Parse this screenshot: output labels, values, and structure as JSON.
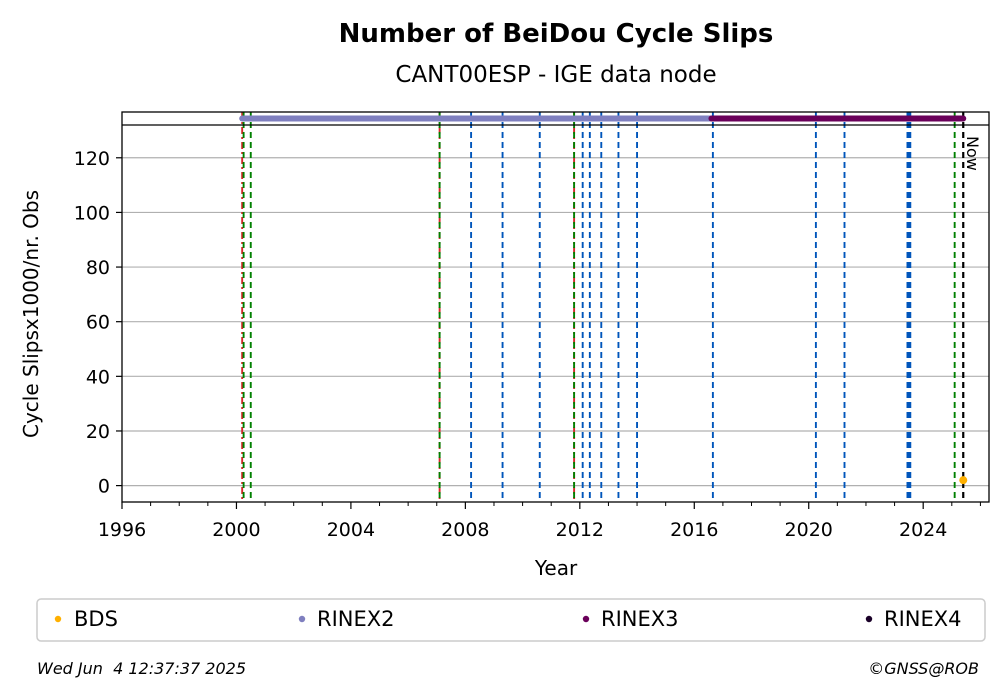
{
  "chart_data": {
    "type": "scatter",
    "title": "Number of BeiDou Cycle Slips",
    "subtitle": "CANT00ESP - IGE data node",
    "xlabel": "Year",
    "ylabel": "Cycle Slipsx1000/nr. Obs",
    "xlim": [
      1996,
      2026.3
    ],
    "ylim": [
      -6,
      132
    ],
    "x_ticks": [
      1996,
      2000,
      2004,
      2008,
      2012,
      2016,
      2020,
      2024
    ],
    "y_ticks": [
      0,
      20,
      40,
      60,
      80,
      100,
      120
    ],
    "grid": "horizontal",
    "legend_position": "bottom",
    "series": [
      {
        "name": "BDS",
        "color": "#ffb000",
        "points": [
          {
            "x": 2025.4,
            "y": 2
          }
        ]
      },
      {
        "name": "RINEX2",
        "color": "#7f7fbf",
        "x_start": 2000.2,
        "x_end": 2016.6
      },
      {
        "name": "RINEX3",
        "color": "#6a005a",
        "x_start": 2016.6,
        "x_end": 2025.4
      },
      {
        "name": "RINEX4",
        "color": "#1a0028",
        "x_start": null,
        "x_end": null
      }
    ],
    "event_lines": [
      {
        "x": 2000.2,
        "color": "#d62728",
        "style": "dashdot"
      },
      {
        "x": 2000.25,
        "color": "#008000",
        "style": "dashed"
      },
      {
        "x": 2000.5,
        "color": "#008000",
        "style": "dashed"
      },
      {
        "x": 2007.1,
        "color": "#d62728",
        "style": "dashdot"
      },
      {
        "x": 2007.1,
        "color": "#008000",
        "style": "dashed"
      },
      {
        "x": 2008.2,
        "color": "#0055bb",
        "style": "dashed"
      },
      {
        "x": 2009.3,
        "color": "#0055bb",
        "style": "dashed"
      },
      {
        "x": 2010.6,
        "color": "#0055bb",
        "style": "dashed"
      },
      {
        "x": 2011.8,
        "color": "#d62728",
        "style": "dashdot"
      },
      {
        "x": 2011.8,
        "color": "#008000",
        "style": "dashed"
      },
      {
        "x": 2012.1,
        "color": "#0055bb",
        "style": "dashed"
      },
      {
        "x": 2012.35,
        "color": "#0055bb",
        "style": "dashed"
      },
      {
        "x": 2012.75,
        "color": "#0055bb",
        "style": "dashed"
      },
      {
        "x": 2013.35,
        "color": "#0055bb",
        "style": "dashed"
      },
      {
        "x": 2014.0,
        "color": "#0055bb",
        "style": "dashed"
      },
      {
        "x": 2016.65,
        "color": "#0055bb",
        "style": "dashed"
      },
      {
        "x": 2020.25,
        "color": "#0055bb",
        "style": "dashed"
      },
      {
        "x": 2021.25,
        "color": "#0055bb",
        "style": "dashed"
      },
      {
        "x": 2023.45,
        "color": "#0055bb",
        "style": "dashed"
      },
      {
        "x": 2023.5,
        "color": "#0055bb",
        "style": "dashed"
      },
      {
        "x": 2023.55,
        "color": "#0055bb",
        "style": "dashed"
      },
      {
        "x": 2025.1,
        "color": "#008000",
        "style": "dashed"
      },
      {
        "x": 2025.4,
        "color": "#000000",
        "style": "dashed"
      }
    ],
    "now_label": "Now",
    "now_x": 2025.4
  },
  "footer": {
    "timestamp": "Wed Jun  4 12:37:37 2025",
    "credit": "©GNSS@ROB"
  }
}
